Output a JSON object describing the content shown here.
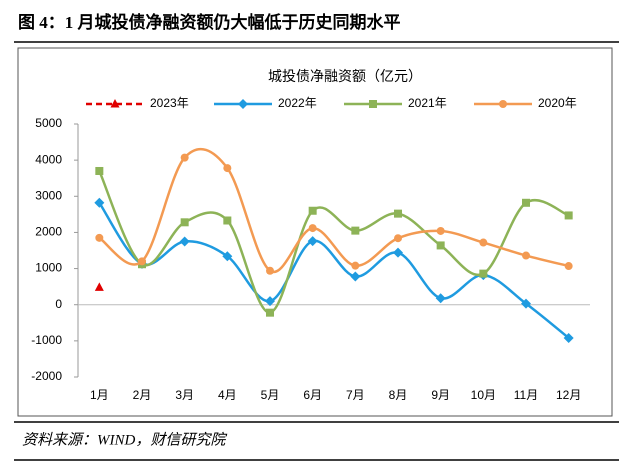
{
  "header": {
    "title": "图 4：1 月城投债净融资额仍大幅低于历史同期水平"
  },
  "source": "资料来源：WIND，财信研究院",
  "chart_data": {
    "type": "line",
    "title": "城投债净融资额（亿元）",
    "categories": [
      "1月",
      "2月",
      "3月",
      "4月",
      "5月",
      "6月",
      "7月",
      "8月",
      "9月",
      "10月",
      "11月",
      "12月"
    ],
    "ylim": [
      -2000,
      5000
    ],
    "yticks": [
      -2000,
      -1000,
      0,
      1000,
      2000,
      3000,
      4000,
      5000
    ],
    "grid": false,
    "smooth": true,
    "series": [
      {
        "name": "2023年",
        "color": "#e00000",
        "marker": "triangle",
        "dash": true,
        "values": [
          480,
          null,
          null,
          null,
          null,
          null,
          null,
          null,
          null,
          null,
          null,
          null
        ]
      },
      {
        "name": "2022年",
        "color": "#1f9be0",
        "marker": "diamond",
        "values": [
          2820,
          1130,
          1750,
          1340,
          100,
          1760,
          780,
          1440,
          180,
          820,
          30,
          -920
        ]
      },
      {
        "name": "2021年",
        "color": "#8db357",
        "marker": "square",
        "values": [
          3700,
          1120,
          2280,
          2330,
          -220,
          2600,
          2050,
          2520,
          1640,
          860,
          2820,
          2470
        ]
      },
      {
        "name": "2020年",
        "color": "#f39a52",
        "marker": "circle",
        "values": [
          1850,
          1200,
          4070,
          3780,
          940,
          2120,
          1080,
          1840,
          2040,
          1720,
          1360,
          1070
        ]
      }
    ]
  }
}
